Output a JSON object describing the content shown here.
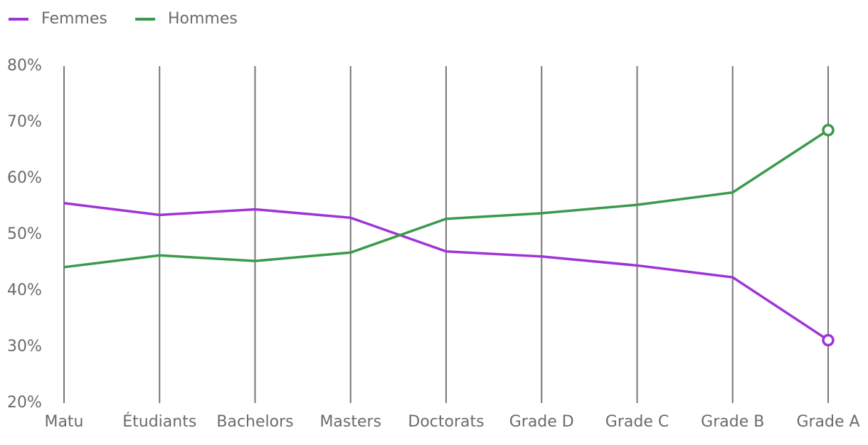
{
  "chart_data": {
    "type": "line",
    "categories": [
      "Matu",
      "Étudiants",
      "Bachelors",
      "Masters",
      "Doctorats",
      "Grade D",
      "Grade C",
      "Grade B",
      "Grade A"
    ],
    "series": [
      {
        "name": "Femmes",
        "color": "#a033d6",
        "values": [
          55.6,
          53.5,
          54.5,
          53.0,
          47.0,
          46.1,
          44.5,
          42.4,
          31.2
        ]
      },
      {
        "name": "Hommes",
        "color": "#3a9a4c",
        "values": [
          44.2,
          46.3,
          45.3,
          46.8,
          52.8,
          53.8,
          55.3,
          57.5,
          68.6
        ]
      }
    ],
    "ylim": [
      20,
      80
    ],
    "yticks": [
      {
        "value": 20,
        "label": "20%"
      },
      {
        "value": 30,
        "label": "30%"
      },
      {
        "value": 40,
        "label": "40%"
      },
      {
        "value": 50,
        "label": "50%"
      },
      {
        "value": 60,
        "label": "60%"
      },
      {
        "value": 70,
        "label": "70%"
      },
      {
        "value": 80,
        "label": "80%"
      }
    ],
    "legend": "top-left"
  }
}
